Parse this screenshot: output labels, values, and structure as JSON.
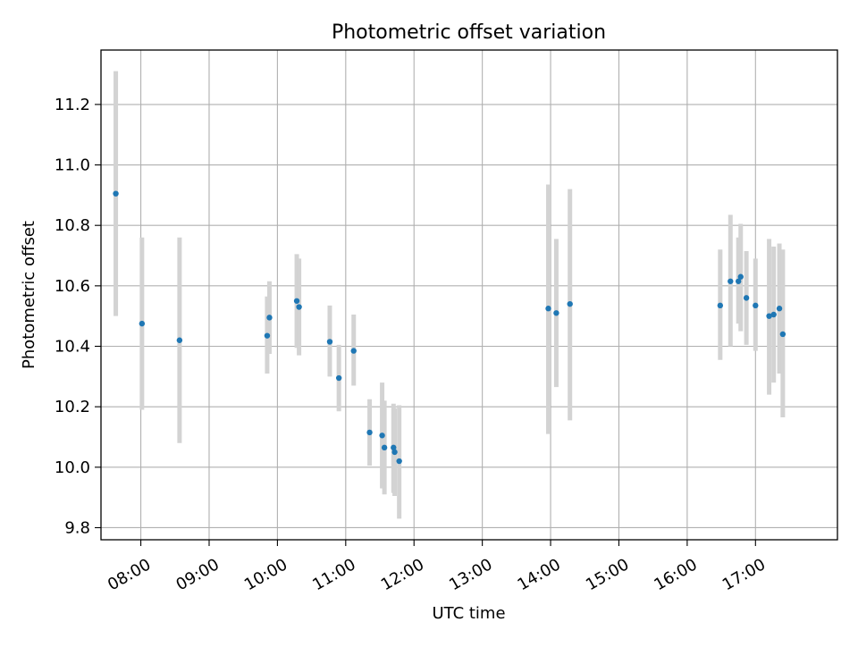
{
  "chart_data": {
    "type": "scatter",
    "title": "Photometric offset variation",
    "xlabel": "UTC time",
    "ylabel": "Photometric offset",
    "x_ticks": [
      "08:00",
      "09:00",
      "10:00",
      "11:00",
      "12:00",
      "13:00",
      "14:00",
      "15:00",
      "16:00",
      "17:00"
    ],
    "y_ticks": [
      "9.8",
      "10.0",
      "10.2",
      "10.4",
      "10.6",
      "10.8",
      "11.0",
      "11.2"
    ],
    "xlim": [
      "07:25",
      "18:12"
    ],
    "ylim": [
      9.76,
      11.38
    ],
    "grid": true,
    "point_color": "#1f77b4",
    "errorbar_color": "#d3d3d3",
    "points": [
      {
        "t": "07:38",
        "y": 10.905,
        "lo": 10.5,
        "hi": 11.31
      },
      {
        "t": "08:01",
        "y": 10.475,
        "lo": 10.19,
        "hi": 10.76
      },
      {
        "t": "08:34",
        "y": 10.42,
        "lo": 10.08,
        "hi": 10.76
      },
      {
        "t": "09:51",
        "y": 10.435,
        "lo": 10.31,
        "hi": 10.565
      },
      {
        "t": "09:53",
        "y": 10.495,
        "lo": 10.375,
        "hi": 10.615
      },
      {
        "t": "10:17",
        "y": 10.55,
        "lo": 10.395,
        "hi": 10.705
      },
      {
        "t": "10:19",
        "y": 10.53,
        "lo": 10.37,
        "hi": 10.69
      },
      {
        "t": "10:46",
        "y": 10.415,
        "lo": 10.3,
        "hi": 10.535
      },
      {
        "t": "10:54",
        "y": 10.295,
        "lo": 10.185,
        "hi": 10.405
      },
      {
        "t": "11:07",
        "y": 10.385,
        "lo": 10.27,
        "hi": 10.505
      },
      {
        "t": "11:21",
        "y": 10.115,
        "lo": 10.005,
        "hi": 10.225
      },
      {
        "t": "11:32",
        "y": 10.105,
        "lo": 9.93,
        "hi": 10.28
      },
      {
        "t": "11:34",
        "y": 10.065,
        "lo": 9.91,
        "hi": 10.22
      },
      {
        "t": "11:42",
        "y": 10.065,
        "lo": 9.915,
        "hi": 10.21
      },
      {
        "t": "11:43",
        "y": 10.05,
        "lo": 9.905,
        "hi": 10.195
      },
      {
        "t": "11:47",
        "y": 10.02,
        "lo": 9.83,
        "hi": 10.205
      },
      {
        "t": "13:58",
        "y": 10.525,
        "lo": 10.11,
        "hi": 10.935
      },
      {
        "t": "14:05",
        "y": 10.51,
        "lo": 10.265,
        "hi": 10.755
      },
      {
        "t": "14:17",
        "y": 10.54,
        "lo": 10.155,
        "hi": 10.92
      },
      {
        "t": "16:29",
        "y": 10.535,
        "lo": 10.355,
        "hi": 10.72
      },
      {
        "t": "16:38",
        "y": 10.615,
        "lo": 10.4,
        "hi": 10.835
      },
      {
        "t": "16:45",
        "y": 10.615,
        "lo": 10.475,
        "hi": 10.76
      },
      {
        "t": "16:47",
        "y": 10.63,
        "lo": 10.45,
        "hi": 10.805
      },
      {
        "t": "16:52",
        "y": 10.56,
        "lo": 10.405,
        "hi": 10.715
      },
      {
        "t": "17:00",
        "y": 10.535,
        "lo": 10.385,
        "hi": 10.69
      },
      {
        "t": "17:12",
        "y": 10.5,
        "lo": 10.24,
        "hi": 10.755
      },
      {
        "t": "17:16",
        "y": 10.505,
        "lo": 10.28,
        "hi": 10.73
      },
      {
        "t": "17:21",
        "y": 10.525,
        "lo": 10.31,
        "hi": 10.74
      },
      {
        "t": "17:24",
        "y": 10.44,
        "lo": 10.165,
        "hi": 10.72
      }
    ]
  }
}
